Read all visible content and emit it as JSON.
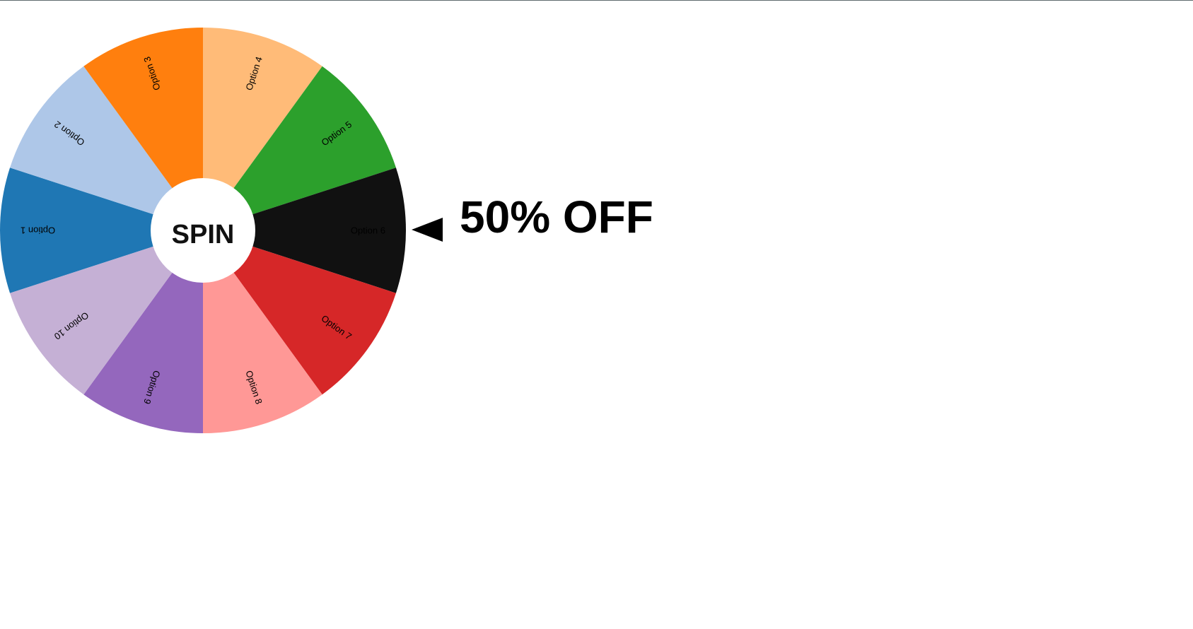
{
  "wheel": {
    "spin_label": "SPIN",
    "options": [
      {
        "label": "Option 1",
        "color": "#1f77b4"
      },
      {
        "label": "Option 2",
        "color": "#aec7e8"
      },
      {
        "label": "Option 3",
        "color": "#ff7f0e"
      },
      {
        "label": "Option 4",
        "color": "#ffbb78"
      },
      {
        "label": "Option 5",
        "color": "#2ca02c"
      },
      {
        "label": "Option 6",
        "color": "#111111"
      },
      {
        "label": "Option 7",
        "color": "#d62728"
      },
      {
        "label": "Option 8",
        "color": "#ff9896"
      },
      {
        "label": "Option 9",
        "color": "#9467bd"
      },
      {
        "label": "Option 10",
        "color": "#c5b0d5"
      }
    ]
  },
  "result": {
    "text": "50% OFF"
  },
  "pointer_icon": "left-pointing-triangle-icon"
}
